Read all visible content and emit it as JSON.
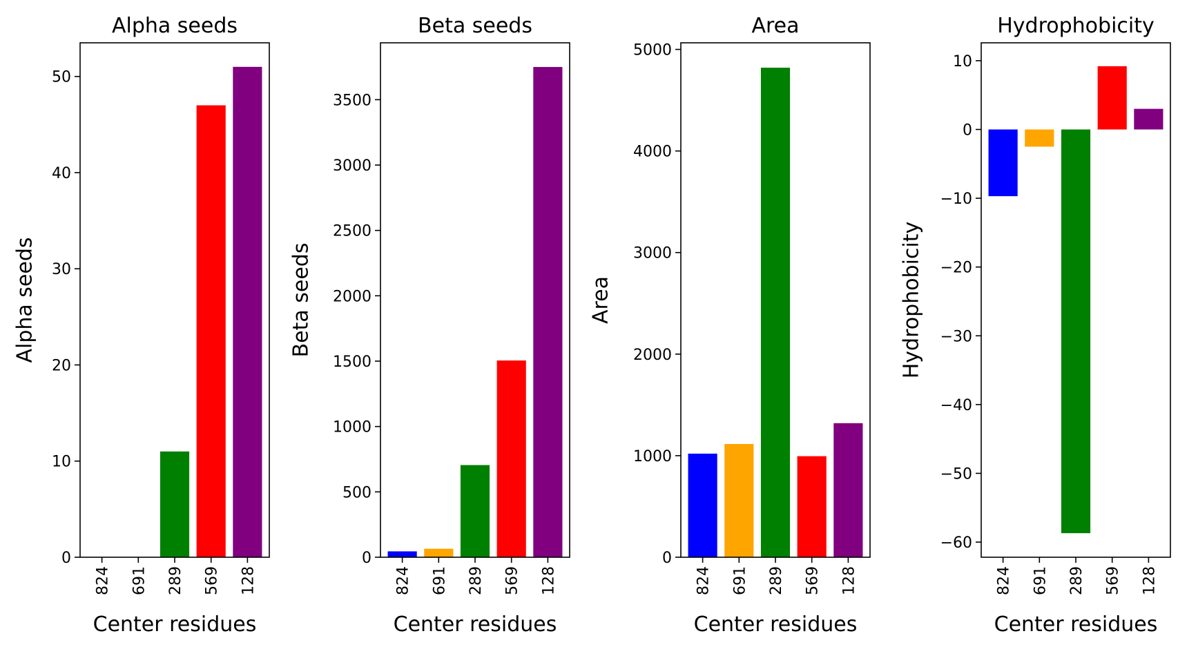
{
  "chart_data": [
    {
      "type": "bar",
      "title": "Alpha seeds",
      "xlabel": "Center residues",
      "ylabel": "Alpha seeds",
      "categories": [
        "824",
        "691",
        "289",
        "569",
        "128"
      ],
      "values": [
        0,
        0,
        11,
        47,
        51
      ],
      "colors": [
        "#0000ff",
        "#ffa500",
        "#008000",
        "#ff0000",
        "#800080"
      ],
      "ylim": [
        0,
        53.5
      ],
      "yticks": [
        0,
        10,
        20,
        30,
        40,
        50
      ],
      "grid": false
    },
    {
      "type": "bar",
      "title": "Beta seeds",
      "xlabel": "Center residues",
      "ylabel": "Beta seeds",
      "categories": [
        "824",
        "691",
        "289",
        "569",
        "128"
      ],
      "values": [
        45,
        65,
        705,
        1505,
        3750
      ],
      "colors": [
        "#0000ff",
        "#ffa500",
        "#008000",
        "#ff0000",
        "#800080"
      ],
      "ylim": [
        0,
        3935
      ],
      "yticks": [
        0,
        500,
        1000,
        1500,
        2000,
        2500,
        3000,
        3500
      ],
      "grid": false
    },
    {
      "type": "bar",
      "title": "Area",
      "xlabel": "Center residues",
      "ylabel": "Area",
      "categories": [
        "824",
        "691",
        "289",
        "569",
        "128"
      ],
      "values": [
        1020,
        1115,
        4820,
        995,
        1320
      ],
      "colors": [
        "#0000ff",
        "#ffa500",
        "#008000",
        "#ff0000",
        "#800080"
      ],
      "ylim": [
        0,
        5065
      ],
      "yticks": [
        0,
        1000,
        2000,
        3000,
        4000,
        5000
      ],
      "grid": false
    },
    {
      "type": "bar",
      "title": "Hydrophobicity",
      "xlabel": "Center residues",
      "ylabel": "Hydrophobicity",
      "categories": [
        "824",
        "691",
        "289",
        "569",
        "128"
      ],
      "values": [
        -9.7,
        -2.5,
        -58.7,
        9.2,
        3.0
      ],
      "colors": [
        "#0000ff",
        "#ffa500",
        "#008000",
        "#ff0000",
        "#800080"
      ],
      "ylim": [
        -62.2,
        12.6
      ],
      "yticks": [
        -60,
        -50,
        -40,
        -30,
        -20,
        -10,
        0,
        10
      ],
      "grid": false
    }
  ]
}
